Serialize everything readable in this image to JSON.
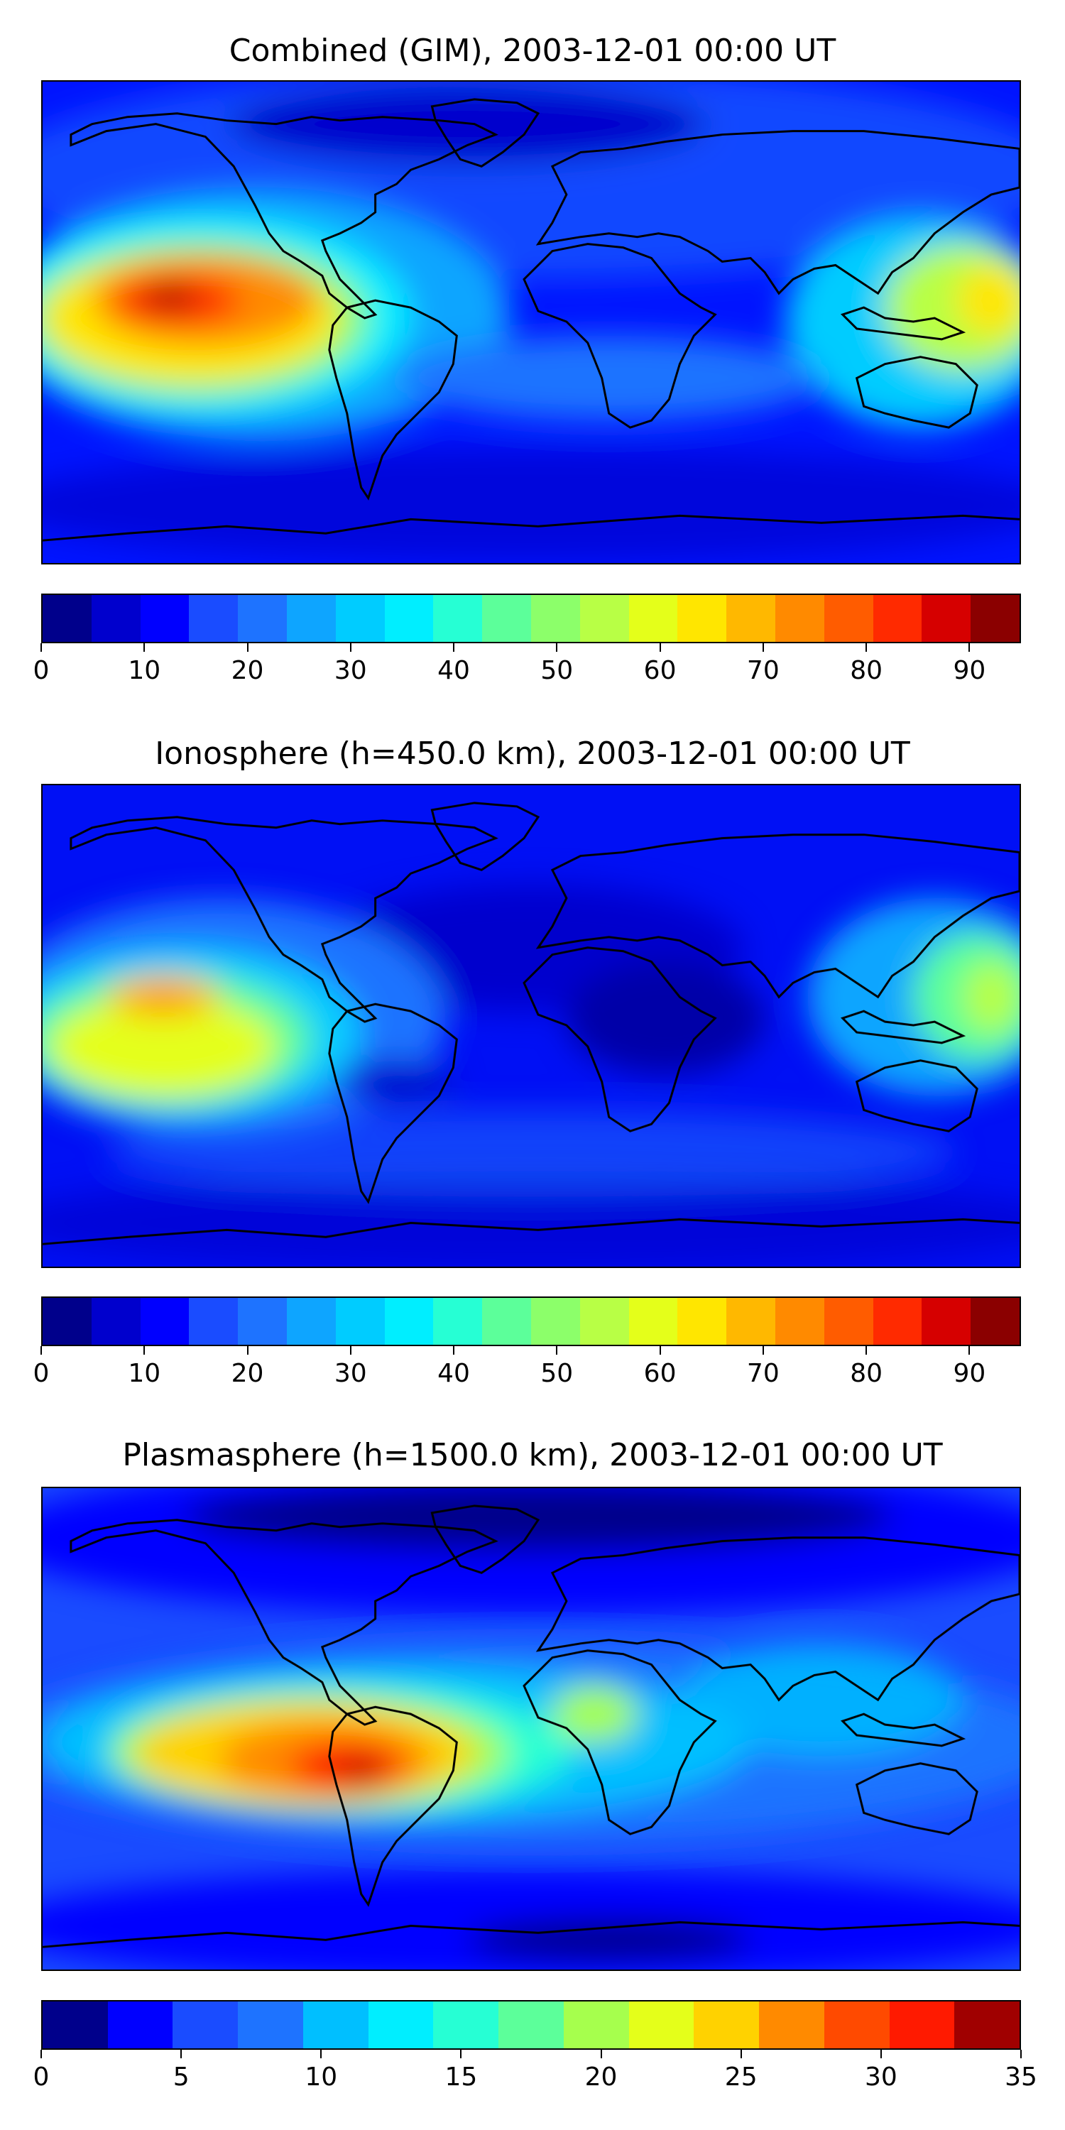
{
  "panels": [
    {
      "title": "Combined (GIM), 2003-12-01 00:00 UT",
      "colorbar": {
        "min": 0,
        "max": 95,
        "boundaries": [
          0,
          5,
          10,
          15,
          20,
          25,
          30,
          35,
          40,
          45,
          50,
          55,
          60,
          65,
          70,
          75,
          80,
          85,
          90,
          95
        ],
        "tick_labels": [
          "0",
          "10",
          "20",
          "30",
          "40",
          "50",
          "60",
          "70",
          "80",
          "90"
        ],
        "tick_values": [
          0,
          10,
          20,
          30,
          40,
          50,
          60,
          70,
          80,
          90
        ],
        "colors": [
          "#00008b",
          "#0000cd",
          "#0000ff",
          "#1a4cff",
          "#1e73ff",
          "#0ea5ff",
          "#00ccff",
          "#00eeff",
          "#26ffd4",
          "#5cff9a",
          "#8cff6a",
          "#b8ff45",
          "#e4ff1a",
          "#ffe600",
          "#ffb800",
          "#ff8a00",
          "#ff5c00",
          "#ff2a00",
          "#d60000",
          "#8b0000"
        ]
      }
    },
    {
      "title": "Ionosphere  (h=450.0 km), 2003-12-01 00:00 UT",
      "colorbar": {
        "min": 0,
        "max": 95,
        "boundaries": [
          0,
          5,
          10,
          15,
          20,
          25,
          30,
          35,
          40,
          45,
          50,
          55,
          60,
          65,
          70,
          75,
          80,
          85,
          90,
          95
        ],
        "tick_labels": [
          "0",
          "10",
          "20",
          "30",
          "40",
          "50",
          "60",
          "70",
          "80",
          "90"
        ],
        "tick_values": [
          0,
          10,
          20,
          30,
          40,
          50,
          60,
          70,
          80,
          90
        ],
        "colors": [
          "#00008b",
          "#0000cd",
          "#0000ff",
          "#1a4cff",
          "#1e73ff",
          "#0ea5ff",
          "#00ccff",
          "#00eeff",
          "#26ffd4",
          "#5cff9a",
          "#8cff6a",
          "#b8ff45",
          "#e4ff1a",
          "#ffe600",
          "#ffb800",
          "#ff8a00",
          "#ff5c00",
          "#ff2a00",
          "#d60000",
          "#8b0000"
        ]
      }
    },
    {
      "title": "Plasmasphere (h=1500.0 km), 2003-12-01 00:00 UT",
      "colorbar": {
        "min": 0,
        "max": 35,
        "boundaries": [
          0,
          2.5,
          5,
          7.5,
          10,
          12.5,
          15,
          17.5,
          20,
          22.5,
          25,
          27.5,
          30,
          32.5,
          35
        ],
        "tick_labels": [
          "0",
          "5",
          "10",
          "15",
          "20",
          "25",
          "30",
          "35"
        ],
        "tick_values": [
          0,
          5,
          10,
          15,
          20,
          25,
          30,
          35
        ],
        "colors": [
          "#00008b",
          "#0000ff",
          "#1a4cff",
          "#1e73ff",
          "#00bfff",
          "#00eeff",
          "#26ffd4",
          "#5cff9a",
          "#a6ff4d",
          "#e4ff1a",
          "#ffd200",
          "#ff8a00",
          "#ff4a00",
          "#ff1a00",
          "#a00000"
        ]
      }
    }
  ]
}
